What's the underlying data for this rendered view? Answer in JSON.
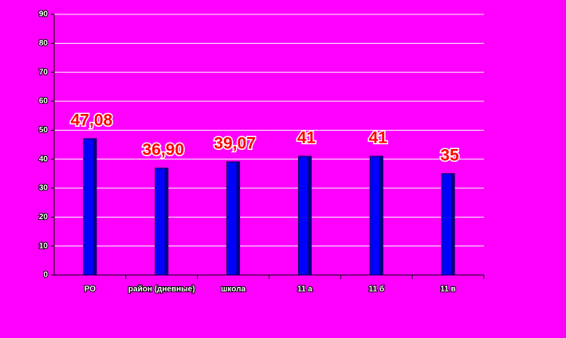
{
  "chart_data": {
    "type": "bar",
    "categories": [
      "РО",
      "район (дневные)",
      "школа",
      "11 а",
      "11 б",
      "11 в"
    ],
    "values": [
      47.08,
      36.9,
      39.07,
      41,
      41,
      35
    ],
    "value_labels": [
      "47,08",
      "36,90",
      "39,07",
      "41",
      "41",
      "35"
    ],
    "color": "#0000ff",
    "ylim": [
      0,
      90
    ],
    "yticks": [
      0,
      10,
      20,
      30,
      40,
      50,
      60,
      70,
      80,
      90
    ],
    "grid": true
  }
}
